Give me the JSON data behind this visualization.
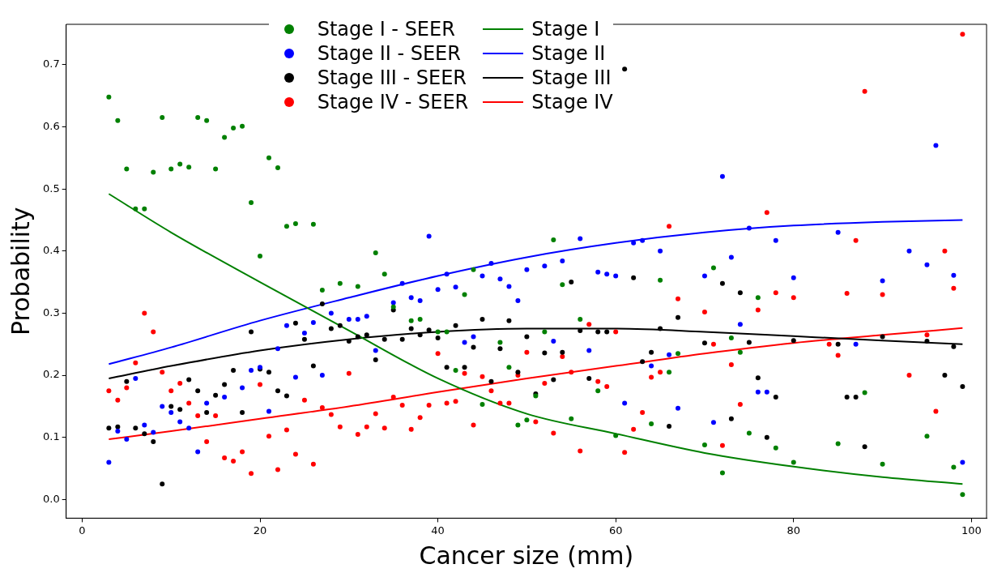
{
  "chart_data": {
    "type": "scatter",
    "xlabel": "Cancer size (mm)",
    "ylabel": "Probability",
    "xlim": [
      -1.8,
      101.7
    ],
    "ylim": [
      -0.03,
      0.765
    ],
    "xticks": [
      0,
      20,
      40,
      60,
      80,
      100
    ],
    "yticks": [
      {
        "value": 0,
        "label": "0.0"
      },
      {
        "value": 0.1,
        "label": "0.1"
      },
      {
        "value": 0.2,
        "label": "0.2"
      },
      {
        "value": 0.3,
        "label": "0.3"
      },
      {
        "value": 0.4,
        "label": "0.4"
      },
      {
        "value": 0.5,
        "label": "0.5"
      },
      {
        "value": 0.6,
        "label": "0.6"
      },
      {
        "value": 0.7,
        "label": "0.7"
      }
    ],
    "grid": false,
    "legend": "top",
    "marker": "circle",
    "series": [
      {
        "name": "Stage I - SEER",
        "type": "scatter",
        "color": "#008000",
        "x": [
          3,
          4,
          5,
          6,
          7,
          8,
          9,
          10,
          11,
          12,
          13,
          14,
          15,
          16,
          17,
          18,
          19,
          20,
          21,
          22,
          23,
          24,
          26,
          27,
          29,
          31,
          33,
          34,
          35,
          37,
          38,
          40,
          41,
          42,
          43,
          44,
          45,
          47,
          48,
          49,
          50,
          51,
          52,
          53,
          54,
          55,
          56,
          58,
          60,
          64,
          65,
          66,
          67,
          70,
          71,
          72,
          73,
          74,
          75,
          76,
          78,
          80,
          85,
          88,
          90,
          95,
          98,
          99
        ],
        "values": [
          0.648,
          0.61,
          0.532,
          0.468,
          0.468,
          0.527,
          0.615,
          0.532,
          0.54,
          0.535,
          0.615,
          0.61,
          0.532,
          0.583,
          0.598,
          0.601,
          0.478,
          0.392,
          0.55,
          0.534,
          0.44,
          0.444,
          0.443,
          0.337,
          0.348,
          0.343,
          0.397,
          0.363,
          0.31,
          0.288,
          0.29,
          0.27,
          0.27,
          0.208,
          0.33,
          0.37,
          0.153,
          0.253,
          0.213,
          0.12,
          0.128,
          0.167,
          0.27,
          0.418,
          0.346,
          0.13,
          0.29,
          0.175,
          0.103,
          0.122,
          0.353,
          0.205,
          0.235,
          0.088,
          0.373,
          0.043,
          0.26,
          0.237,
          0.107,
          0.325,
          0.083,
          0.06,
          0.09,
          0.172,
          0.057,
          0.102,
          0.052,
          0.008
        ]
      },
      {
        "name": "Stage II - SEER",
        "type": "scatter",
        "color": "#0000ff",
        "x": [
          3,
          4,
          5,
          6,
          7,
          8,
          9,
          10,
          11,
          12,
          13,
          14,
          16,
          18,
          19,
          20,
          21,
          22,
          23,
          24,
          25,
          26,
          27,
          28,
          30,
          31,
          32,
          33,
          35,
          36,
          37,
          38,
          39,
          40,
          41,
          42,
          43,
          44,
          45,
          46,
          47,
          48,
          49,
          50,
          52,
          53,
          54,
          56,
          57,
          58,
          59,
          60,
          61,
          62,
          63,
          64,
          65,
          66,
          67,
          70,
          71,
          72,
          73,
          74,
          75,
          76,
          77,
          78,
          80,
          85,
          87,
          90,
          93,
          95,
          96,
          98,
          99
        ],
        "values": [
          0.06,
          0.11,
          0.097,
          0.195,
          0.12,
          0.108,
          0.15,
          0.14,
          0.125,
          0.115,
          0.077,
          0.155,
          0.165,
          0.18,
          0.208,
          0.213,
          0.142,
          0.243,
          0.28,
          0.197,
          0.268,
          0.285,
          0.2,
          0.3,
          0.29,
          0.29,
          0.295,
          0.24,
          0.317,
          0.348,
          0.325,
          0.32,
          0.424,
          0.338,
          0.363,
          0.342,
          0.253,
          0.262,
          0.36,
          0.38,
          0.355,
          0.343,
          0.32,
          0.37,
          0.376,
          0.255,
          0.384,
          0.42,
          0.24,
          0.366,
          0.363,
          0.36,
          0.155,
          0.413,
          0.417,
          0.215,
          0.4,
          0.233,
          0.147,
          0.36,
          0.124,
          0.52,
          0.39,
          0.282,
          0.437,
          0.173,
          0.173,
          0.417,
          0.357,
          0.43,
          0.25,
          0.352,
          0.4,
          0.378,
          0.57,
          0.361,
          0.06
        ]
      },
      {
        "name": "Stage III - SEER",
        "type": "scatter",
        "color": "#000000",
        "x": [
          3,
          4,
          5,
          6,
          7,
          8,
          9,
          10,
          11,
          12,
          13,
          14,
          15,
          16,
          17,
          18,
          19,
          20,
          21,
          22,
          23,
          24,
          25,
          26,
          27,
          28,
          29,
          30,
          31,
          32,
          33,
          34,
          35,
          36,
          37,
          38,
          39,
          40,
          41,
          42,
          43,
          44,
          45,
          46,
          47,
          48,
          49,
          50,
          51,
          52,
          53,
          54,
          55,
          56,
          57,
          58,
          59,
          61,
          62,
          63,
          64,
          65,
          66,
          67,
          70,
          72,
          73,
          74,
          75,
          76,
          77,
          78,
          80,
          85,
          86,
          87,
          88,
          90,
          95,
          97,
          98,
          99
        ],
        "values": [
          0.115,
          0.117,
          0.19,
          0.115,
          0.106,
          0.093,
          0.025,
          0.15,
          0.145,
          0.193,
          0.175,
          0.14,
          0.168,
          0.185,
          0.208,
          0.14,
          0.27,
          0.21,
          0.205,
          0.175,
          0.167,
          0.284,
          0.258,
          0.215,
          0.315,
          0.275,
          0.28,
          0.255,
          0.262,
          0.265,
          0.225,
          0.258,
          0.305,
          0.258,
          0.275,
          0.265,
          0.273,
          0.26,
          0.213,
          0.28,
          0.213,
          0.245,
          0.29,
          0.19,
          0.243,
          0.288,
          0.205,
          0.262,
          0.17,
          0.236,
          0.193,
          0.237,
          0.35,
          0.272,
          0.195,
          0.27,
          0.27,
          0.693,
          0.357,
          0.222,
          0.237,
          0.275,
          0.118,
          0.293,
          0.252,
          0.348,
          0.13,
          0.333,
          0.253,
          0.196,
          0.1,
          0.165,
          0.256,
          0.25,
          0.165,
          0.165,
          0.085,
          0.262,
          0.255,
          0.2,
          0.246,
          0.182
        ]
      },
      {
        "name": "Stage IV - SEER",
        "type": "scatter",
        "color": "#ff0000",
        "x": [
          3,
          4,
          5,
          6,
          7,
          8,
          9,
          10,
          11,
          12,
          13,
          14,
          15,
          16,
          17,
          18,
          19,
          20,
          21,
          22,
          23,
          24,
          25,
          26,
          27,
          28,
          29,
          30,
          31,
          32,
          33,
          34,
          35,
          36,
          37,
          38,
          39,
          40,
          41,
          42,
          43,
          44,
          45,
          46,
          47,
          48,
          49,
          50,
          51,
          52,
          53,
          54,
          55,
          56,
          57,
          58,
          59,
          60,
          61,
          62,
          63,
          64,
          65,
          66,
          67,
          70,
          71,
          72,
          73,
          74,
          76,
          77,
          78,
          80,
          84,
          85,
          86,
          87,
          88,
          90,
          93,
          95,
          96,
          97,
          98,
          99
        ],
        "values": [
          0.175,
          0.16,
          0.18,
          0.22,
          0.3,
          0.27,
          0.205,
          0.175,
          0.187,
          0.155,
          0.135,
          0.093,
          0.135,
          0.067,
          0.062,
          0.077,
          0.042,
          0.185,
          0.102,
          0.048,
          0.112,
          0.073,
          0.16,
          0.057,
          0.148,
          0.137,
          0.117,
          0.203,
          0.105,
          0.117,
          0.138,
          0.115,
          0.165,
          0.152,
          0.113,
          0.132,
          0.152,
          0.235,
          0.155,
          0.158,
          0.203,
          0.12,
          0.198,
          0.175,
          0.155,
          0.155,
          0.2,
          0.237,
          0.125,
          0.187,
          0.107,
          0.23,
          0.205,
          0.078,
          0.282,
          0.19,
          0.182,
          0.27,
          0.076,
          0.113,
          0.14,
          0.197,
          0.205,
          0.44,
          0.323,
          0.302,
          0.25,
          0.087,
          0.217,
          0.153,
          0.305,
          0.462,
          0.333,
          0.325,
          0.25,
          0.232,
          0.332,
          0.417,
          0.657,
          0.33,
          0.2,
          0.265,
          0.142,
          0.4,
          0.34,
          0.749
        ]
      },
      {
        "name": "Stage I",
        "type": "line",
        "color": "#008000",
        "marker": "none",
        "x": [
          3,
          10,
          20,
          30,
          40,
          50,
          60,
          70,
          80,
          90,
          99
        ],
        "values": [
          0.492,
          0.43,
          0.35,
          0.272,
          0.195,
          0.138,
          0.106,
          0.075,
          0.053,
          0.036,
          0.025
        ]
      },
      {
        "name": "Stage II",
        "type": "line",
        "color": "#0000ff",
        "marker": "none",
        "x": [
          3,
          10,
          20,
          30,
          40,
          50,
          60,
          70,
          80,
          90,
          99
        ],
        "values": [
          0.218,
          0.245,
          0.288,
          0.325,
          0.36,
          0.39,
          0.413,
          0.43,
          0.441,
          0.447,
          0.45
        ]
      },
      {
        "name": "Stage III",
        "type": "line",
        "color": "#000000",
        "marker": "none",
        "x": [
          3,
          10,
          20,
          30,
          40,
          50,
          60,
          70,
          80,
          90,
          99
        ],
        "values": [
          0.195,
          0.215,
          0.24,
          0.258,
          0.27,
          0.275,
          0.275,
          0.27,
          0.263,
          0.256,
          0.25
        ]
      },
      {
        "name": "Stage IV",
        "type": "line",
        "color": "#ff0000",
        "marker": "none",
        "x": [
          3,
          10,
          20,
          30,
          40,
          50,
          60,
          70,
          80,
          90,
          99
        ],
        "values": [
          0.097,
          0.11,
          0.13,
          0.15,
          0.173,
          0.195,
          0.215,
          0.235,
          0.252,
          0.265,
          0.276
        ]
      }
    ]
  }
}
